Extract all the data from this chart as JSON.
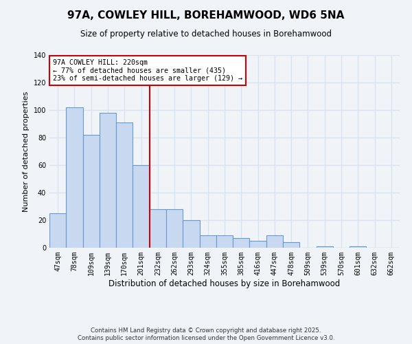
{
  "title": "97A, COWLEY HILL, BOREHAMWOOD, WD6 5NA",
  "subtitle": "Size of property relative to detached houses in Borehamwood",
  "xlabel": "Distribution of detached houses by size in Borehamwood",
  "ylabel": "Number of detached properties",
  "bar_labels": [
    "47sqm",
    "78sqm",
    "109sqm",
    "139sqm",
    "170sqm",
    "201sqm",
    "232sqm",
    "262sqm",
    "293sqm",
    "324sqm",
    "355sqm",
    "385sqm",
    "416sqm",
    "447sqm",
    "478sqm",
    "509sqm",
    "539sqm",
    "570sqm",
    "601sqm",
    "632sqm",
    "662sqm"
  ],
  "bar_values": [
    25,
    102,
    82,
    98,
    91,
    60,
    28,
    28,
    20,
    9,
    9,
    7,
    5,
    9,
    4,
    0,
    1,
    0,
    1,
    0,
    0
  ],
  "bar_color": "#c8d8f0",
  "bar_edge_color": "#6699cc",
  "reference_line_x": 5.5,
  "reference_line_color": "#cc0000",
  "annotation_title": "97A COWLEY HILL: 220sqm",
  "annotation_line1": "← 77% of detached houses are smaller (435)",
  "annotation_line2": "23% of semi-detached houses are larger (129) →",
  "annotation_box_color": "#ffffff",
  "annotation_box_edge": "#cc0000",
  "ylim": [
    0,
    140
  ],
  "yticks": [
    0,
    20,
    40,
    60,
    80,
    100,
    120,
    140
  ],
  "background_color": "#f0f4f8",
  "grid_color": "#d8e4f0",
  "footer_line1": "Contains HM Land Registry data © Crown copyright and database right 2025.",
  "footer_line2": "Contains public sector information licensed under the Open Government Licence v3.0."
}
